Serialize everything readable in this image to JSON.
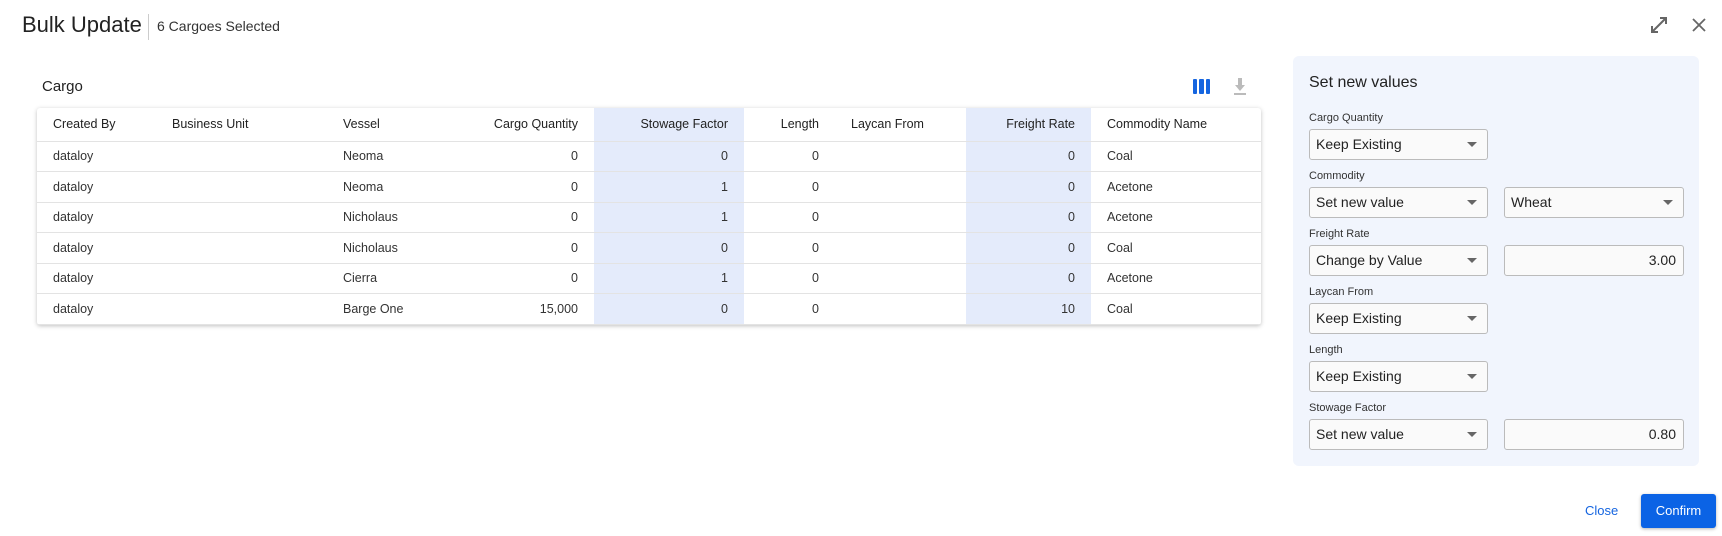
{
  "header": {
    "title": "Bulk Update",
    "subtitle": "6 Cargoes Selected",
    "icons": [
      "expand-icon",
      "close-icon"
    ]
  },
  "cargo": {
    "title": "Cargo",
    "columns": [
      "Created By",
      "Business Unit",
      "Vessel",
      "Cargo Quantity",
      "Stowage Factor",
      "Length",
      "Laycan From",
      "Freight Rate",
      "Commodity Name"
    ],
    "rows": [
      [
        "dataloy",
        "",
        "Neoma",
        "0",
        "0",
        "0",
        "",
        "0",
        "Coal"
      ],
      [
        "dataloy",
        "",
        "Neoma",
        "0",
        "1",
        "0",
        "",
        "0",
        "Acetone"
      ],
      [
        "dataloy",
        "",
        "Nicholaus",
        "0",
        "1",
        "0",
        "",
        "0",
        "Acetone"
      ],
      [
        "dataloy",
        "",
        "Nicholaus",
        "0",
        "0",
        "0",
        "",
        "0",
        "Coal"
      ],
      [
        "dataloy",
        "",
        "Cierra",
        "0",
        "1",
        "0",
        "",
        "0",
        "Acetone"
      ],
      [
        "dataloy",
        "",
        "Barge One",
        "15,000",
        "0",
        "0",
        "",
        "10",
        "Coal"
      ]
    ]
  },
  "panel": {
    "title": "Set new values",
    "cargo_quantity": {
      "label": "Cargo Quantity",
      "mode": "Keep Existing"
    },
    "commodity": {
      "label": "Commodity",
      "mode": "Set new value",
      "value": "Wheat"
    },
    "freight_rate": {
      "label": "Freight Rate",
      "mode": "Change by Value",
      "value": "3.00"
    },
    "laycan_from": {
      "label": "Laycan From",
      "mode": "Keep Existing"
    },
    "length": {
      "label": "Length",
      "mode": "Keep Existing"
    },
    "stowage_factor": {
      "label": "Stowage Factor",
      "mode": "Set new value",
      "value": "0.80"
    }
  },
  "footer": {
    "close": "Close",
    "confirm": "Confirm"
  },
  "colors": {
    "accent": "#0b63e5",
    "highlight_column": "#e4ebfb",
    "panel_bg": "#f1f5fd"
  }
}
